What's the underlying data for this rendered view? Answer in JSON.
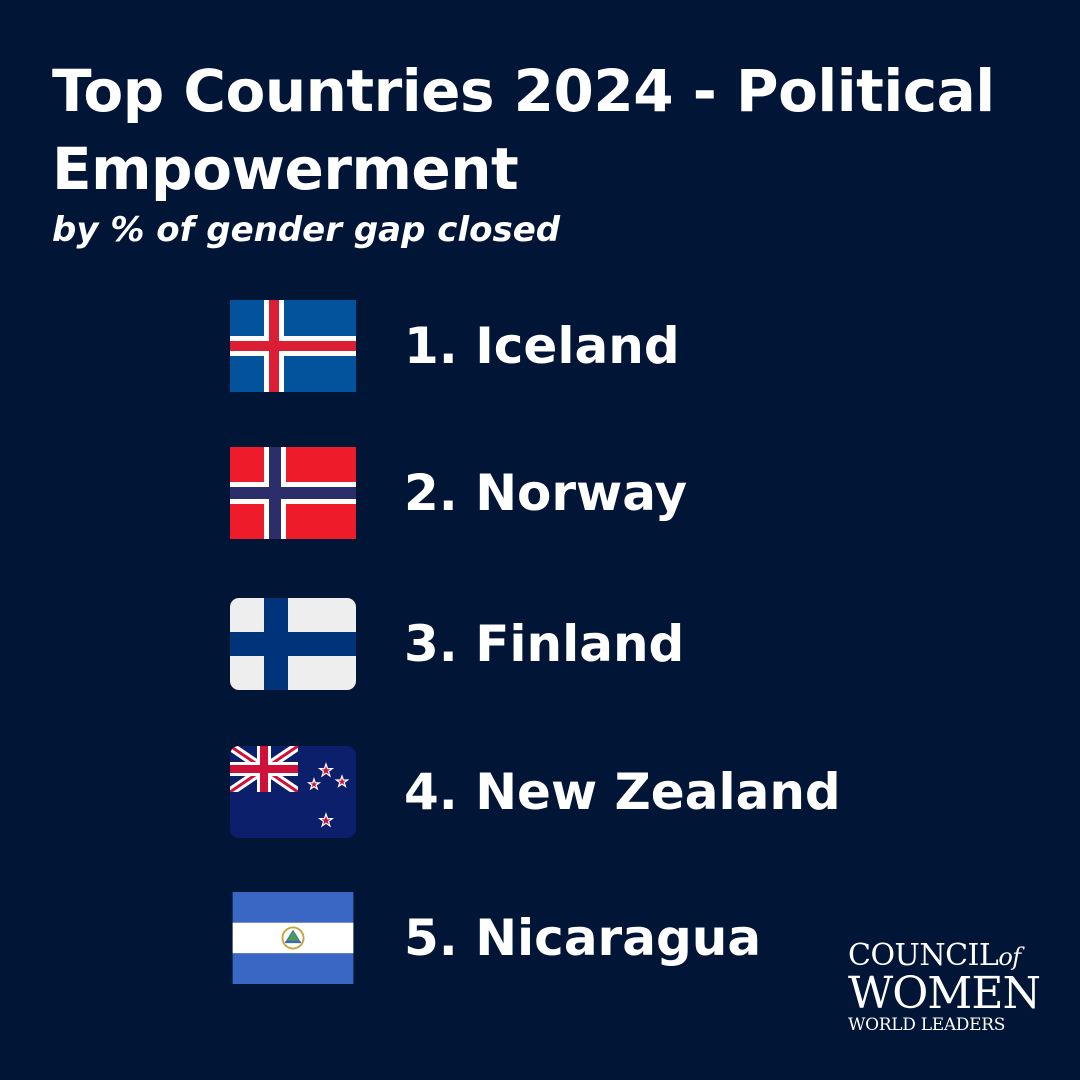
{
  "header": {
    "title": "Top Countries 2024 - Political Empowerment",
    "subtitle": "by % of gender gap closed"
  },
  "countries": [
    {
      "label": "1. Iceland",
      "flag": "iceland-flag"
    },
    {
      "label": "2. Norway",
      "flag": "norway-flag"
    },
    {
      "label": "3. Finland",
      "flag": "finland-flag"
    },
    {
      "label": "4. New Zealand",
      "flag": "new-zealand-flag"
    },
    {
      "label": "5. Nicaragua",
      "flag": "nicaragua-flag"
    }
  ],
  "logo": {
    "line1": "COUNCIL",
    "line1_suffix": "of",
    "line2": "WOMEN",
    "line3": "WORLD LEADERS"
  },
  "colors": {
    "background": "#011536",
    "text": "#ffffff"
  }
}
